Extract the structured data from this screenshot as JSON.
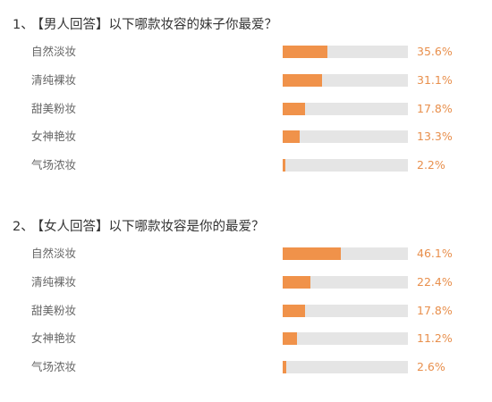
{
  "chart_data": [
    {
      "type": "bar",
      "orientation": "horizontal",
      "title": "【男人回答】以下哪款妆容的妹子你最爱？",
      "number": "1、",
      "categories": [
        "自然淡妆",
        "清纯裸妆",
        "甜美粉妆",
        "女神艳妆",
        "气场浓妆"
      ],
      "values": [
        35.6,
        31.1,
        17.8,
        13.3,
        2.2
      ],
      "labels": [
        "35.6%",
        "31.1%",
        "17.8%",
        "13.3%",
        "2.2%"
      ],
      "xlim": [
        0,
        100
      ],
      "unit": "%",
      "bar_color": "#f0924a",
      "track_color": "#e5e5e5",
      "label_color": "#e88f4c"
    },
    {
      "type": "bar",
      "orientation": "horizontal",
      "title": "【女人回答】以下哪款妆容是你的最爱？",
      "number": "2、",
      "categories": [
        "自然淡妆",
        "清纯裸妆",
        "甜美粉妆",
        "女神艳妆",
        "气场浓妆"
      ],
      "values": [
        46.1,
        22.4,
        17.8,
        11.2,
        2.6
      ],
      "labels": [
        "46.1%",
        "22.4%",
        "17.8%",
        "11.2%",
        "2.6%"
      ],
      "xlim": [
        0,
        100
      ],
      "unit": "%",
      "bar_color": "#f0924a",
      "track_color": "#e5e5e5",
      "label_color": "#e88f4c"
    }
  ]
}
